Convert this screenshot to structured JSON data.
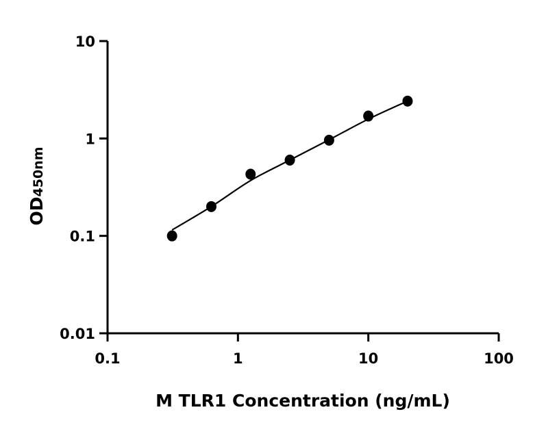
{
  "chart_data": {
    "type": "scatter",
    "title": "",
    "xlabel": "M TLR1 Concentration (ng/mL)",
    "ylabel_main": "OD",
    "ylabel_sub": "450nm",
    "x_scale": "log",
    "y_scale": "log",
    "xlim": [
      0.1,
      100
    ],
    "ylim": [
      0.01,
      10
    ],
    "x_ticks": [
      "0.1",
      "1",
      "10",
      "100"
    ],
    "y_ticks": [
      "0.01",
      "0.1",
      "1",
      "10"
    ],
    "grid": false,
    "points": {
      "x": [
        0.3125,
        0.625,
        1.25,
        2.5,
        5,
        10,
        20
      ],
      "y": [
        0.1,
        0.2,
        0.43,
        0.6,
        0.96,
        1.7,
        2.42
      ]
    },
    "fit_curve": {
      "x": [
        0.3125,
        0.625,
        1.25,
        2.5,
        5,
        10,
        20
      ],
      "y": [
        0.115,
        0.2,
        0.37,
        0.6,
        0.97,
        1.58,
        2.42
      ]
    },
    "colors": {
      "points": "#000000",
      "line": "#000000"
    }
  }
}
